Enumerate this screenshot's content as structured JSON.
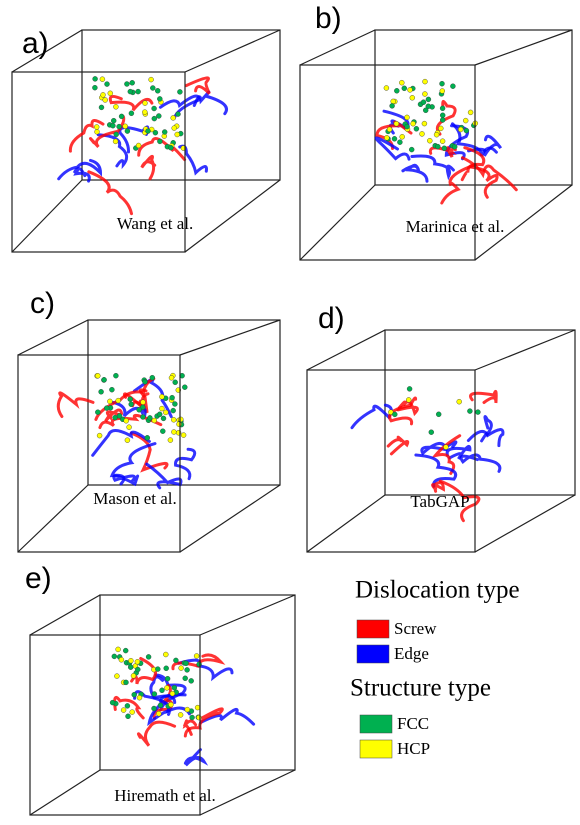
{
  "panels": [
    {
      "label": "a)",
      "caption": "Wang et al."
    },
    {
      "label": "b)",
      "caption": "Marinica et al."
    },
    {
      "label": "c)",
      "caption": "Mason et al."
    },
    {
      "label": "d)",
      "caption": "TabGAP"
    },
    {
      "label": "e)",
      "caption": "Hiremath et al."
    }
  ],
  "legend": {
    "dislocation_title": "Dislocation type",
    "dislocation_items": [
      {
        "label": "Screw",
        "color": "#ff0000"
      },
      {
        "label": "Edge",
        "color": "#0000ff"
      }
    ],
    "structure_title": "Structure type",
    "structure_items": [
      {
        "label": "FCC",
        "color": "#00b050"
      },
      {
        "label": "HCP",
        "color": "#ffff00"
      }
    ]
  }
}
